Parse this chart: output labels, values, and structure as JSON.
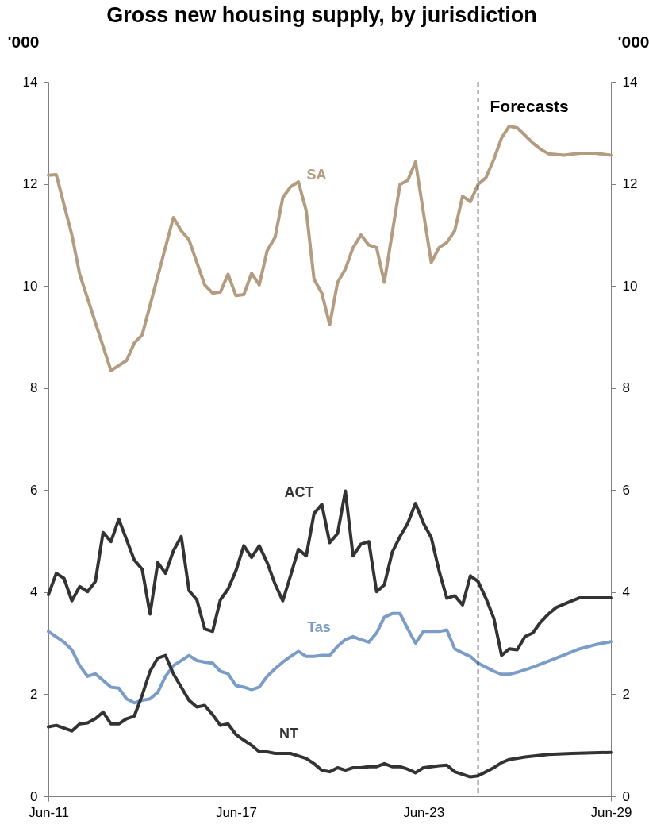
{
  "chart_data": {
    "type": "line",
    "title": "Gross new housing supply, by jurisdiction",
    "ylabel": "'000",
    "y2label": "'000",
    "xlim": [
      "2011-06",
      "2029-06"
    ],
    "xticks": [
      {
        "value": "2011-06",
        "label": "Jun-11"
      },
      {
        "value": "2017-06",
        "label": "Jun-17"
      },
      {
        "value": "2023-06",
        "label": "Jun-23"
      },
      {
        "value": "2029-06",
        "label": "Jun-29"
      }
    ],
    "ylim": [
      0,
      14
    ],
    "yticks": [
      0,
      2,
      4,
      6,
      8,
      10,
      12,
      14
    ],
    "y2lim": [
      0,
      14
    ],
    "y2ticks": [
      0,
      2,
      4,
      6,
      8,
      10,
      12,
      14
    ],
    "grid": false,
    "line_style": "solid",
    "ref_lines": [
      {
        "axis": "x",
        "value": "2025-03",
        "label": "Forecasts",
        "color": "#000000",
        "line_style": "dashed"
      }
    ],
    "series": [
      {
        "name": "SA",
        "color": "#b39c80",
        "x": [
          "2011-06",
          "2011-09",
          "2012-03",
          "2012-06",
          "2013-06",
          "2013-12",
          "2014-03",
          "2014-06",
          "2015-06",
          "2015-09",
          "2015-12",
          "2016-06",
          "2016-09",
          "2016-12",
          "2017-03",
          "2017-06",
          "2017-09",
          "2017-12",
          "2018-03",
          "2018-06",
          "2018-09",
          "2018-12",
          "2019-03",
          "2019-06",
          "2019-09",
          "2019-12",
          "2020-03",
          "2020-06",
          "2020-09",
          "2020-12",
          "2021-03",
          "2021-06",
          "2021-09",
          "2021-12",
          "2022-03",
          "2022-09",
          "2022-12",
          "2023-03",
          "2023-09",
          "2023-12",
          "2024-03",
          "2024-06",
          "2024-09",
          "2024-12",
          "2025-03",
          "2025-06",
          "2025-09",
          "2025-12",
          "2026-03",
          "2026-06",
          "2026-09",
          "2026-12",
          "2027-03",
          "2027-06",
          "2027-12",
          "2028-06",
          "2028-12",
          "2029-06"
        ],
        "values": [
          12.17,
          12.18,
          11.0,
          10.23,
          8.34,
          8.54,
          8.88,
          9.04,
          11.34,
          11.08,
          10.9,
          10.02,
          9.86,
          9.88,
          10.23,
          9.81,
          9.83,
          10.25,
          10.02,
          10.69,
          10.95,
          11.73,
          11.94,
          12.04,
          11.47,
          10.13,
          9.86,
          9.24,
          10.07,
          10.33,
          10.75,
          11.0,
          10.8,
          10.75,
          10.07,
          11.99,
          12.07,
          12.43,
          10.46,
          10.75,
          10.85,
          11.08,
          11.76,
          11.65,
          11.99,
          12.12,
          12.48,
          12.9,
          13.13,
          13.1,
          12.95,
          12.8,
          12.68,
          12.59,
          12.56,
          12.6,
          12.6,
          12.56
        ]
      },
      {
        "name": "ACT",
        "color": "#333333",
        "x": [
          "2011-06",
          "2011-09",
          "2011-12",
          "2012-03",
          "2012-06",
          "2012-09",
          "2012-12",
          "2013-03",
          "2013-06",
          "2013-09",
          "2014-03",
          "2014-06",
          "2014-09",
          "2014-12",
          "2015-03",
          "2015-06",
          "2015-09",
          "2015-12",
          "2016-03",
          "2016-06",
          "2016-09",
          "2016-12",
          "2017-03",
          "2017-06",
          "2017-09",
          "2017-12",
          "2018-03",
          "2018-06",
          "2018-09",
          "2018-12",
          "2019-03",
          "2019-06",
          "2019-09",
          "2019-12",
          "2020-03",
          "2020-06",
          "2020-09",
          "2020-12",
          "2021-03",
          "2021-06",
          "2021-09",
          "2021-12",
          "2022-03",
          "2022-06",
          "2022-09",
          "2022-12",
          "2023-03",
          "2023-06",
          "2023-09",
          "2023-12",
          "2024-03",
          "2024-06",
          "2024-09",
          "2024-12",
          "2025-03",
          "2025-06",
          "2025-09",
          "2025-12",
          "2026-03",
          "2026-06",
          "2026-09",
          "2026-12",
          "2027-03",
          "2027-06",
          "2027-09",
          "2028-03",
          "2028-06",
          "2029-06"
        ],
        "values": [
          3.95,
          4.37,
          4.27,
          3.83,
          4.11,
          4.01,
          4.21,
          5.17,
          4.99,
          5.43,
          4.63,
          4.45,
          3.57,
          4.58,
          4.37,
          4.81,
          5.09,
          4.03,
          3.85,
          3.28,
          3.23,
          3.85,
          4.06,
          4.42,
          4.91,
          4.68,
          4.91,
          4.58,
          4.16,
          3.83,
          4.32,
          4.84,
          4.71,
          5.54,
          5.72,
          4.97,
          5.15,
          5.98,
          4.71,
          4.94,
          4.99,
          4.01,
          4.14,
          4.78,
          5.09,
          5.35,
          5.74,
          5.35,
          5.07,
          4.42,
          3.88,
          3.93,
          3.75,
          4.32,
          4.21,
          3.88,
          3.49,
          2.76,
          2.89,
          2.87,
          3.13,
          3.2,
          3.41,
          3.57,
          3.7,
          3.83,
          3.89,
          3.89
        ]
      },
      {
        "name": "Tas",
        "color": "#7a9cc6",
        "x": [
          "2011-06",
          "2011-12",
          "2012-03",
          "2012-06",
          "2012-09",
          "2012-12",
          "2013-03",
          "2013-06",
          "2013-09",
          "2013-12",
          "2014-03",
          "2014-06",
          "2014-09",
          "2014-12",
          "2015-03",
          "2015-06",
          "2015-09",
          "2015-12",
          "2016-03",
          "2016-06",
          "2016-09",
          "2016-12",
          "2017-03",
          "2017-06",
          "2017-09",
          "2017-12",
          "2018-03",
          "2018-06",
          "2018-09",
          "2018-12",
          "2019-03",
          "2019-06",
          "2019-09",
          "2019-12",
          "2020-03",
          "2020-06",
          "2020-09",
          "2020-12",
          "2021-03",
          "2021-06",
          "2021-09",
          "2021-12",
          "2022-03",
          "2022-06",
          "2022-09",
          "2022-12",
          "2023-03",
          "2023-06",
          "2023-09",
          "2023-12",
          "2024-03",
          "2024-06",
          "2024-09",
          "2024-12",
          "2025-03",
          "2025-06",
          "2025-09",
          "2025-12",
          "2026-03",
          "2026-06",
          "2026-12",
          "2027-09",
          "2028-06",
          "2028-12",
          "2029-06"
        ],
        "values": [
          3.23,
          3.02,
          2.87,
          2.56,
          2.35,
          2.4,
          2.27,
          2.14,
          2.12,
          1.91,
          1.83,
          1.88,
          1.91,
          2.04,
          2.35,
          2.56,
          2.66,
          2.76,
          2.66,
          2.63,
          2.61,
          2.45,
          2.4,
          2.17,
          2.14,
          2.09,
          2.14,
          2.35,
          2.5,
          2.63,
          2.74,
          2.84,
          2.74,
          2.74,
          2.76,
          2.76,
          2.94,
          3.07,
          3.13,
          3.07,
          3.02,
          3.2,
          3.51,
          3.58,
          3.58,
          3.28,
          3.0,
          3.23,
          3.23,
          3.23,
          3.26,
          2.89,
          2.81,
          2.74,
          2.61,
          2.53,
          2.45,
          2.39,
          2.39,
          2.43,
          2.53,
          2.71,
          2.89,
          2.97,
          3.03
        ]
      },
      {
        "name": "NT",
        "color": "#333333",
        "x": [
          "2011-06",
          "2011-09",
          "2012-03",
          "2012-06",
          "2012-09",
          "2012-12",
          "2013-03",
          "2013-06",
          "2013-09",
          "2013-12",
          "2014-03",
          "2014-06",
          "2014-09",
          "2014-12",
          "2015-03",
          "2015-06",
          "2015-09",
          "2015-12",
          "2016-03",
          "2016-06",
          "2016-09",
          "2016-12",
          "2017-03",
          "2017-06",
          "2017-09",
          "2017-12",
          "2018-03",
          "2018-06",
          "2018-09",
          "2018-12",
          "2019-03",
          "2019-06",
          "2019-09",
          "2019-12",
          "2020-03",
          "2020-06",
          "2020-09",
          "2020-12",
          "2021-03",
          "2021-06",
          "2021-09",
          "2021-12",
          "2022-03",
          "2022-06",
          "2022-09",
          "2022-12",
          "2023-03",
          "2023-06",
          "2023-09",
          "2023-12",
          "2024-03",
          "2024-06",
          "2024-09",
          "2024-12",
          "2025-03",
          "2025-06",
          "2025-09",
          "2025-12",
          "2026-03",
          "2026-09",
          "2027-06",
          "2028-03",
          "2029-06"
        ],
        "values": [
          1.36,
          1.39,
          1.28,
          1.42,
          1.44,
          1.52,
          1.65,
          1.42,
          1.42,
          1.52,
          1.57,
          1.98,
          2.45,
          2.71,
          2.76,
          2.4,
          2.14,
          1.88,
          1.75,
          1.78,
          1.6,
          1.39,
          1.42,
          1.21,
          1.1,
          1.0,
          0.87,
          0.87,
          0.84,
          0.84,
          0.84,
          0.79,
          0.74,
          0.64,
          0.51,
          0.48,
          0.56,
          0.51,
          0.56,
          0.56,
          0.58,
          0.58,
          0.64,
          0.58,
          0.58,
          0.53,
          0.46,
          0.56,
          0.58,
          0.6,
          0.61,
          0.48,
          0.43,
          0.38,
          0.4,
          0.48,
          0.56,
          0.66,
          0.72,
          0.77,
          0.82,
          0.84,
          0.86
        ]
      }
    ]
  }
}
